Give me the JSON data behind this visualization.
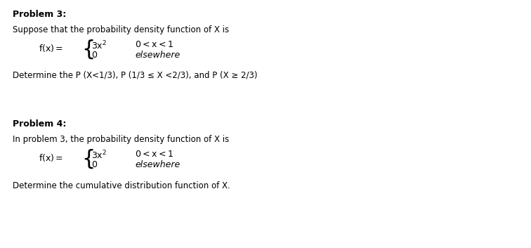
{
  "background_color": "#ffffff",
  "figsize": [
    7.56,
    3.53
  ],
  "dpi": 100,
  "problem3_title": "Problem 3:",
  "problem3_intro": "Suppose that the probability density function of X is",
  "problem3_question": "Determine the P (X<1/3), P (1/3 ≤ X <2/3), and P (X ≥ 2/3)",
  "problem4_title": "Problem 4:",
  "problem4_intro": "In problem 3, the probability density function of X is",
  "problem4_question": "Determine the cumulative distribution function of X.",
  "text_color": "#000000",
  "title_fontsize": 9,
  "body_fontsize": 8.5,
  "math_fontsize": 9,
  "brace_fontsize": 22
}
